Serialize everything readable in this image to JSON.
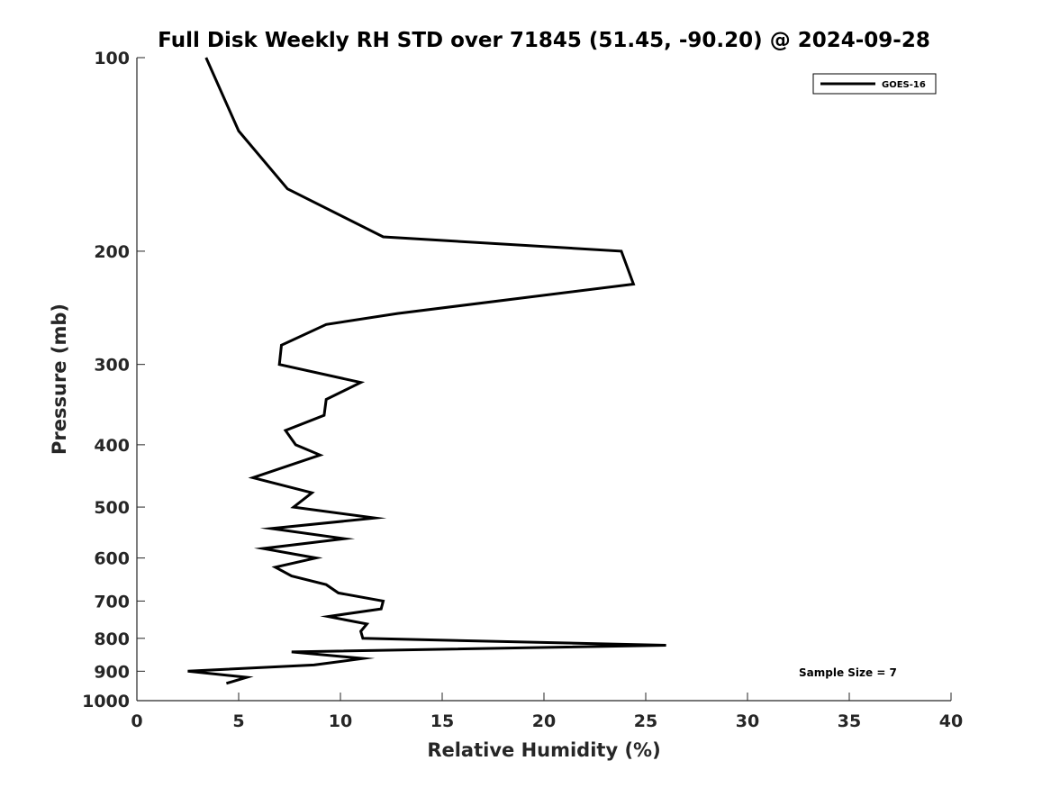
{
  "chart_data": {
    "type": "line",
    "title": "Full Disk Weekly RH STD over 71845 (51.45, -90.20) @ 2024-09-28",
    "xlabel": "Relative Humidity (%)",
    "ylabel": "Pressure (mb)",
    "xlim": [
      0,
      40
    ],
    "ylim": [
      100,
      1000
    ],
    "y_scale": "log",
    "y_reversed": true,
    "xticks": [
      0,
      5,
      10,
      15,
      20,
      25,
      30,
      35,
      40
    ],
    "yticks": [
      100,
      200,
      300,
      400,
      500,
      600,
      700,
      800,
      900,
      1000
    ],
    "grid": false,
    "legend_position": "top-right",
    "series": [
      {
        "name": "GOES-16",
        "color": "#000000",
        "x": [
          3.4,
          5.0,
          7.4,
          12.1,
          23.8,
          24.4,
          12.8,
          9.3,
          7.1,
          7.0,
          11.0,
          9.3,
          9.2,
          7.3,
          7.8,
          9.0,
          5.7,
          8.6,
          7.7,
          11.7,
          6.6,
          10.2,
          6.2,
          8.8,
          6.8,
          7.6,
          9.3,
          9.9,
          12.1,
          12.0,
          9.4,
          11.3,
          11.0,
          11.1,
          26.0,
          7.6,
          11.1,
          8.7,
          2.5,
          5.4,
          4.4
        ],
        "y": [
          100,
          130,
          160,
          190,
          200,
          225,
          250,
          260,
          280,
          300,
          320,
          340,
          360,
          380,
          400,
          415,
          450,
          475,
          500,
          520,
          540,
          560,
          580,
          600,
          620,
          640,
          660,
          680,
          700,
          720,
          740,
          760,
          780,
          800,
          820,
          840,
          860,
          880,
          900,
          920,
          940
        ]
      }
    ],
    "annotations": [
      "Sample Size = 7"
    ]
  }
}
